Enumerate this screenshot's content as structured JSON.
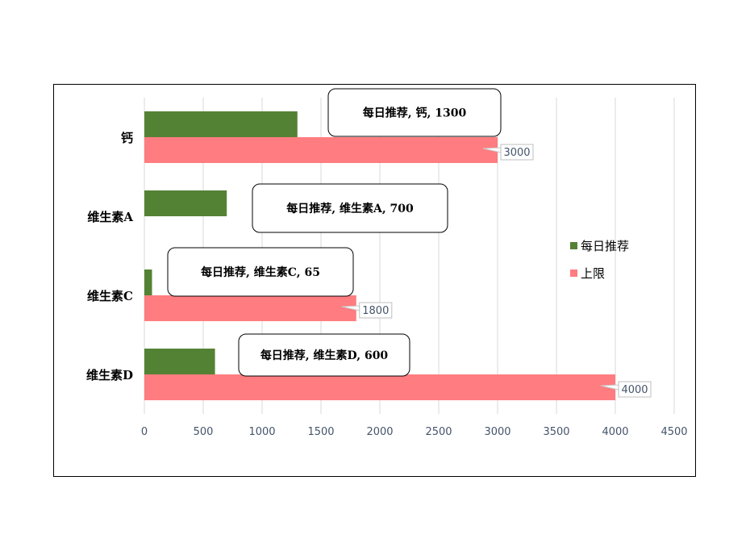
{
  "chart_data": {
    "type": "bar",
    "orientation": "horizontal",
    "categories": [
      "钙",
      "维生素A",
      "维生素C",
      "维生素D"
    ],
    "series": [
      {
        "name": "每日推荐",
        "values": [
          1300,
          700,
          65,
          600
        ],
        "color": "#548235"
      },
      {
        "name": "上限",
        "values": [
          3000,
          null,
          1800,
          4000
        ],
        "color": "#ff7c80"
      }
    ],
    "xlim": [
      0,
      4500
    ],
    "xticks": [
      "0",
      "500",
      "1000",
      "1500",
      "2000",
      "2500",
      "3000",
      "3500",
      "4000",
      "4500"
    ],
    "grid": "vertical",
    "legend_position": "right",
    "callouts": [
      "每日推荐, 钙, 1300",
      "每日推荐, 维生素A, 700",
      "每日推荐, 维生素C, 65",
      "每日推荐, 维生素D, 600"
    ],
    "value_labels": [
      "3000",
      "",
      "1800",
      "4000"
    ]
  }
}
